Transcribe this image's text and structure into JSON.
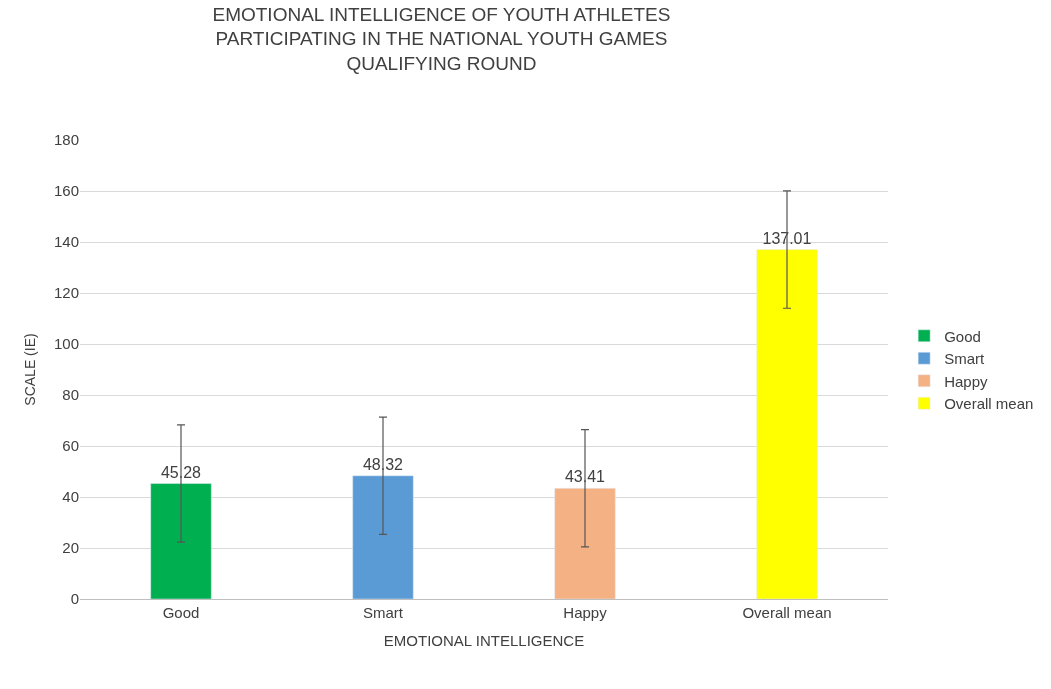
{
  "chart_data": {
    "type": "bar",
    "title": "EMOTIONAL INTELLIGENCE OF YOUTH ATHLETES\nPARTICIPATING IN THE NATIONAL YOUTH GAMES\nQUALIFYING ROUND",
    "xlabel": "EMOTIONAL INTELLIGENCE",
    "ylabel": "SCALE (IE)",
    "categories": [
      "Good",
      "Smart",
      "Happy",
      "Overall mean"
    ],
    "series": [
      {
        "name": "Good",
        "color": "#00b050",
        "values": [
          45.28,
          null,
          null,
          null
        ],
        "errors": [
          23,
          null,
          null,
          null
        ]
      },
      {
        "name": "Smart",
        "color": "#5b9bd5",
        "values": [
          null,
          48.32,
          null,
          null
        ],
        "errors": [
          null,
          23,
          null,
          null
        ]
      },
      {
        "name": "Happy",
        "color": "#f4b183",
        "values": [
          null,
          null,
          43.41,
          null
        ],
        "errors": [
          null,
          null,
          23,
          null
        ]
      },
      {
        "name": "Overall mean",
        "color": "#ffff00",
        "values": [
          null,
          null,
          null,
          137.01
        ],
        "errors": [
          null,
          null,
          null,
          23
        ]
      }
    ],
    "ylim": [
      0,
      180
    ],
    "yticks": [
      0,
      20,
      40,
      60,
      80,
      100,
      120,
      140,
      160,
      180
    ],
    "grid": "y",
    "legend": "right",
    "data_labels": true
  }
}
